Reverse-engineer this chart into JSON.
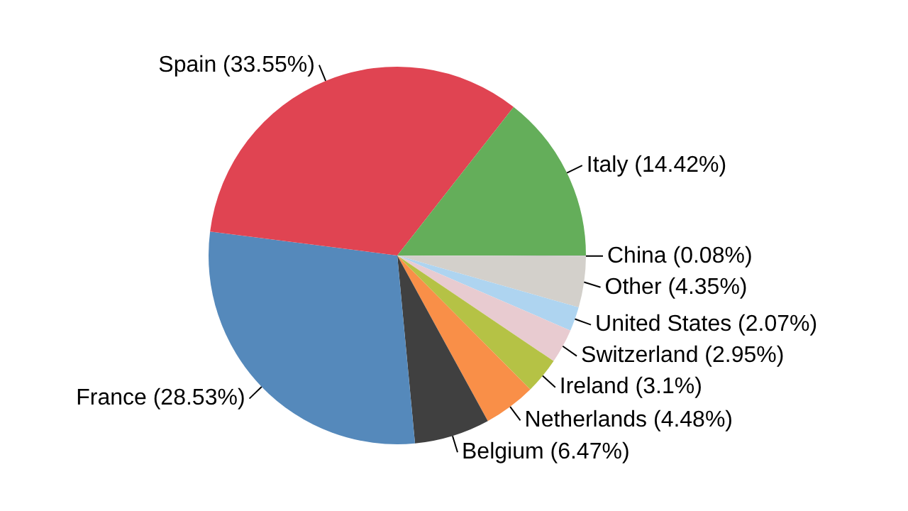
{
  "chart_data": {
    "type": "pie",
    "categories": [
      "China",
      "Other",
      "United States",
      "Switzerland",
      "Ireland",
      "Netherlands",
      "Belgium",
      "France",
      "Spain",
      "Italy"
    ],
    "values": [
      0.08,
      4.35,
      2.07,
      2.95,
      3.1,
      4.48,
      6.47,
      28.53,
      33.55,
      14.42
    ],
    "value_labels": [
      "(0.08%)",
      "(4.35%)",
      "(2.07%)",
      "(2.95%)",
      "(3.1%)",
      "(4.48%)",
      "(6.47%)",
      "(28.53%)",
      "(33.55%)",
      "(14.42%)"
    ],
    "colors": [
      "#c8c8c8",
      "#d3d0cb",
      "#aed4f0",
      "#e8cbd0",
      "#b5c245",
      "#f98f48",
      "#404040",
      "#5589bb",
      "#e04452",
      "#64ae5a"
    ]
  }
}
